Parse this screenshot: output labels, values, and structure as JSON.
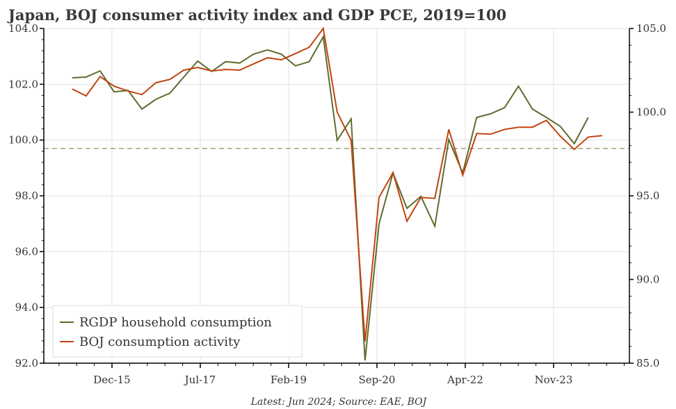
{
  "chart_data": {
    "type": "line",
    "title": "Japan, BOJ consumer activity index and GDP PCE, 2019=100",
    "source": "Latest: Jun 2024; Source: EAE, BOJ",
    "xlabel": "",
    "ylabel_left": "",
    "ylabel_right": "",
    "x_tick_labels": [
      "Dec-15",
      "Jul-17",
      "Feb-19",
      "Sep-20",
      "Apr-22",
      "Nov-23"
    ],
    "y_left": {
      "lim": [
        92,
        104
      ],
      "ticks": [
        92.0,
        94.0,
        96.0,
        98.0,
        100.0,
        102.0,
        104.0
      ],
      "tick_labels": [
        "92.0",
        "94.0",
        "96.0",
        "98.0",
        "100.0",
        "102.0",
        "104.0"
      ]
    },
    "y_right": {
      "lim": [
        85,
        105
      ],
      "ticks": [
        85,
        90,
        95,
        100,
        105
      ],
      "tick_labels": [
        "85.0",
        "90.0",
        "95.0",
        "100.0",
        "105.0"
      ]
    },
    "grid": true,
    "legend_placement": "bottom-left",
    "reference_line_left": 99.7,
    "x_start": "Mar-15",
    "x_step_months": 3,
    "series": [
      {
        "name": "RGDP household consumption",
        "axis": "left",
        "color": "#5a6e2e",
        "values": [
          102.23,
          102.26,
          102.48,
          101.73,
          101.78,
          101.11,
          101.46,
          101.68,
          102.26,
          102.83,
          102.46,
          102.81,
          102.76,
          103.08,
          103.23,
          103.08,
          102.66,
          102.81,
          103.7,
          99.99,
          100.76,
          92.1,
          97.0,
          98.82,
          97.55,
          97.98,
          96.91,
          100.02,
          98.82,
          100.81,
          100.94,
          101.16,
          101.93,
          101.11,
          100.81,
          100.49,
          99.87,
          100.81
        ]
      },
      {
        "name": "BOJ consumption activity",
        "axis": "right",
        "color": "#c0440f",
        "values": [
          101.38,
          100.97,
          102.13,
          101.55,
          101.26,
          101.05,
          101.76,
          101.96,
          102.51,
          102.67,
          102.46,
          102.55,
          102.51,
          102.88,
          103.25,
          103.13,
          103.5,
          103.88,
          105.0,
          100.0,
          98.31,
          86.29,
          94.9,
          96.39,
          93.48,
          94.9,
          94.85,
          98.97,
          96.23,
          98.72,
          98.68,
          98.97,
          99.1,
          99.1,
          99.51,
          98.56,
          97.77,
          98.51,
          98.6
        ]
      }
    ]
  }
}
